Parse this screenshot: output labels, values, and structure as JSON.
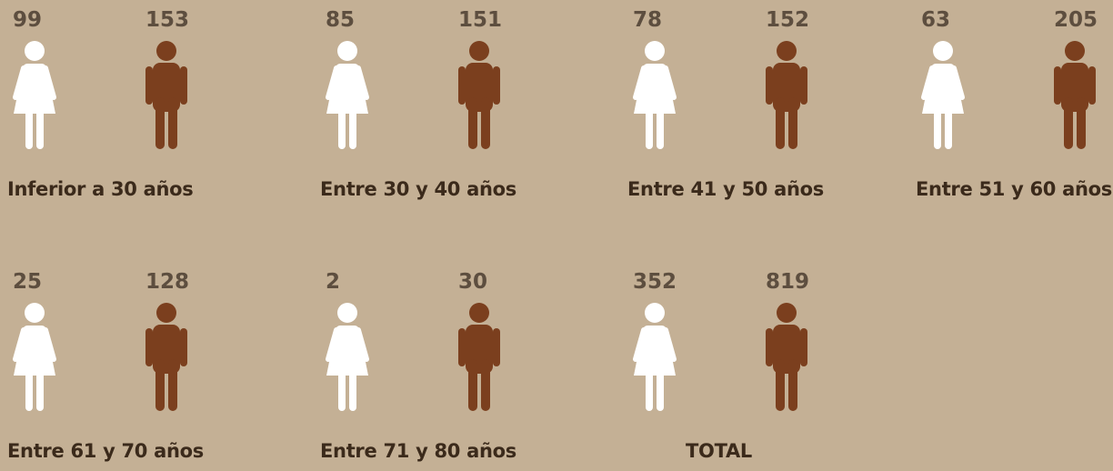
{
  "groups": [
    {
      "label": "Inferior a 30 años",
      "women": 99,
      "men": 153
    },
    {
      "label": "Entre 30 y 40 años",
      "women": 85,
      "men": 151
    },
    {
      "label": "Entre 41 y 50 años",
      "women": 78,
      "men": 152
    },
    {
      "label": "Entre 51 y 60 años",
      "women": 63,
      "men": 205
    },
    {
      "label": "Entre 61 y 70 años",
      "women": 25,
      "men": 128
    },
    {
      "label": "Entre 71 y 80 años",
      "women": 2,
      "men": 30
    },
    {
      "label": "TOTAL",
      "women": 352,
      "men": 819
    }
  ]
}
